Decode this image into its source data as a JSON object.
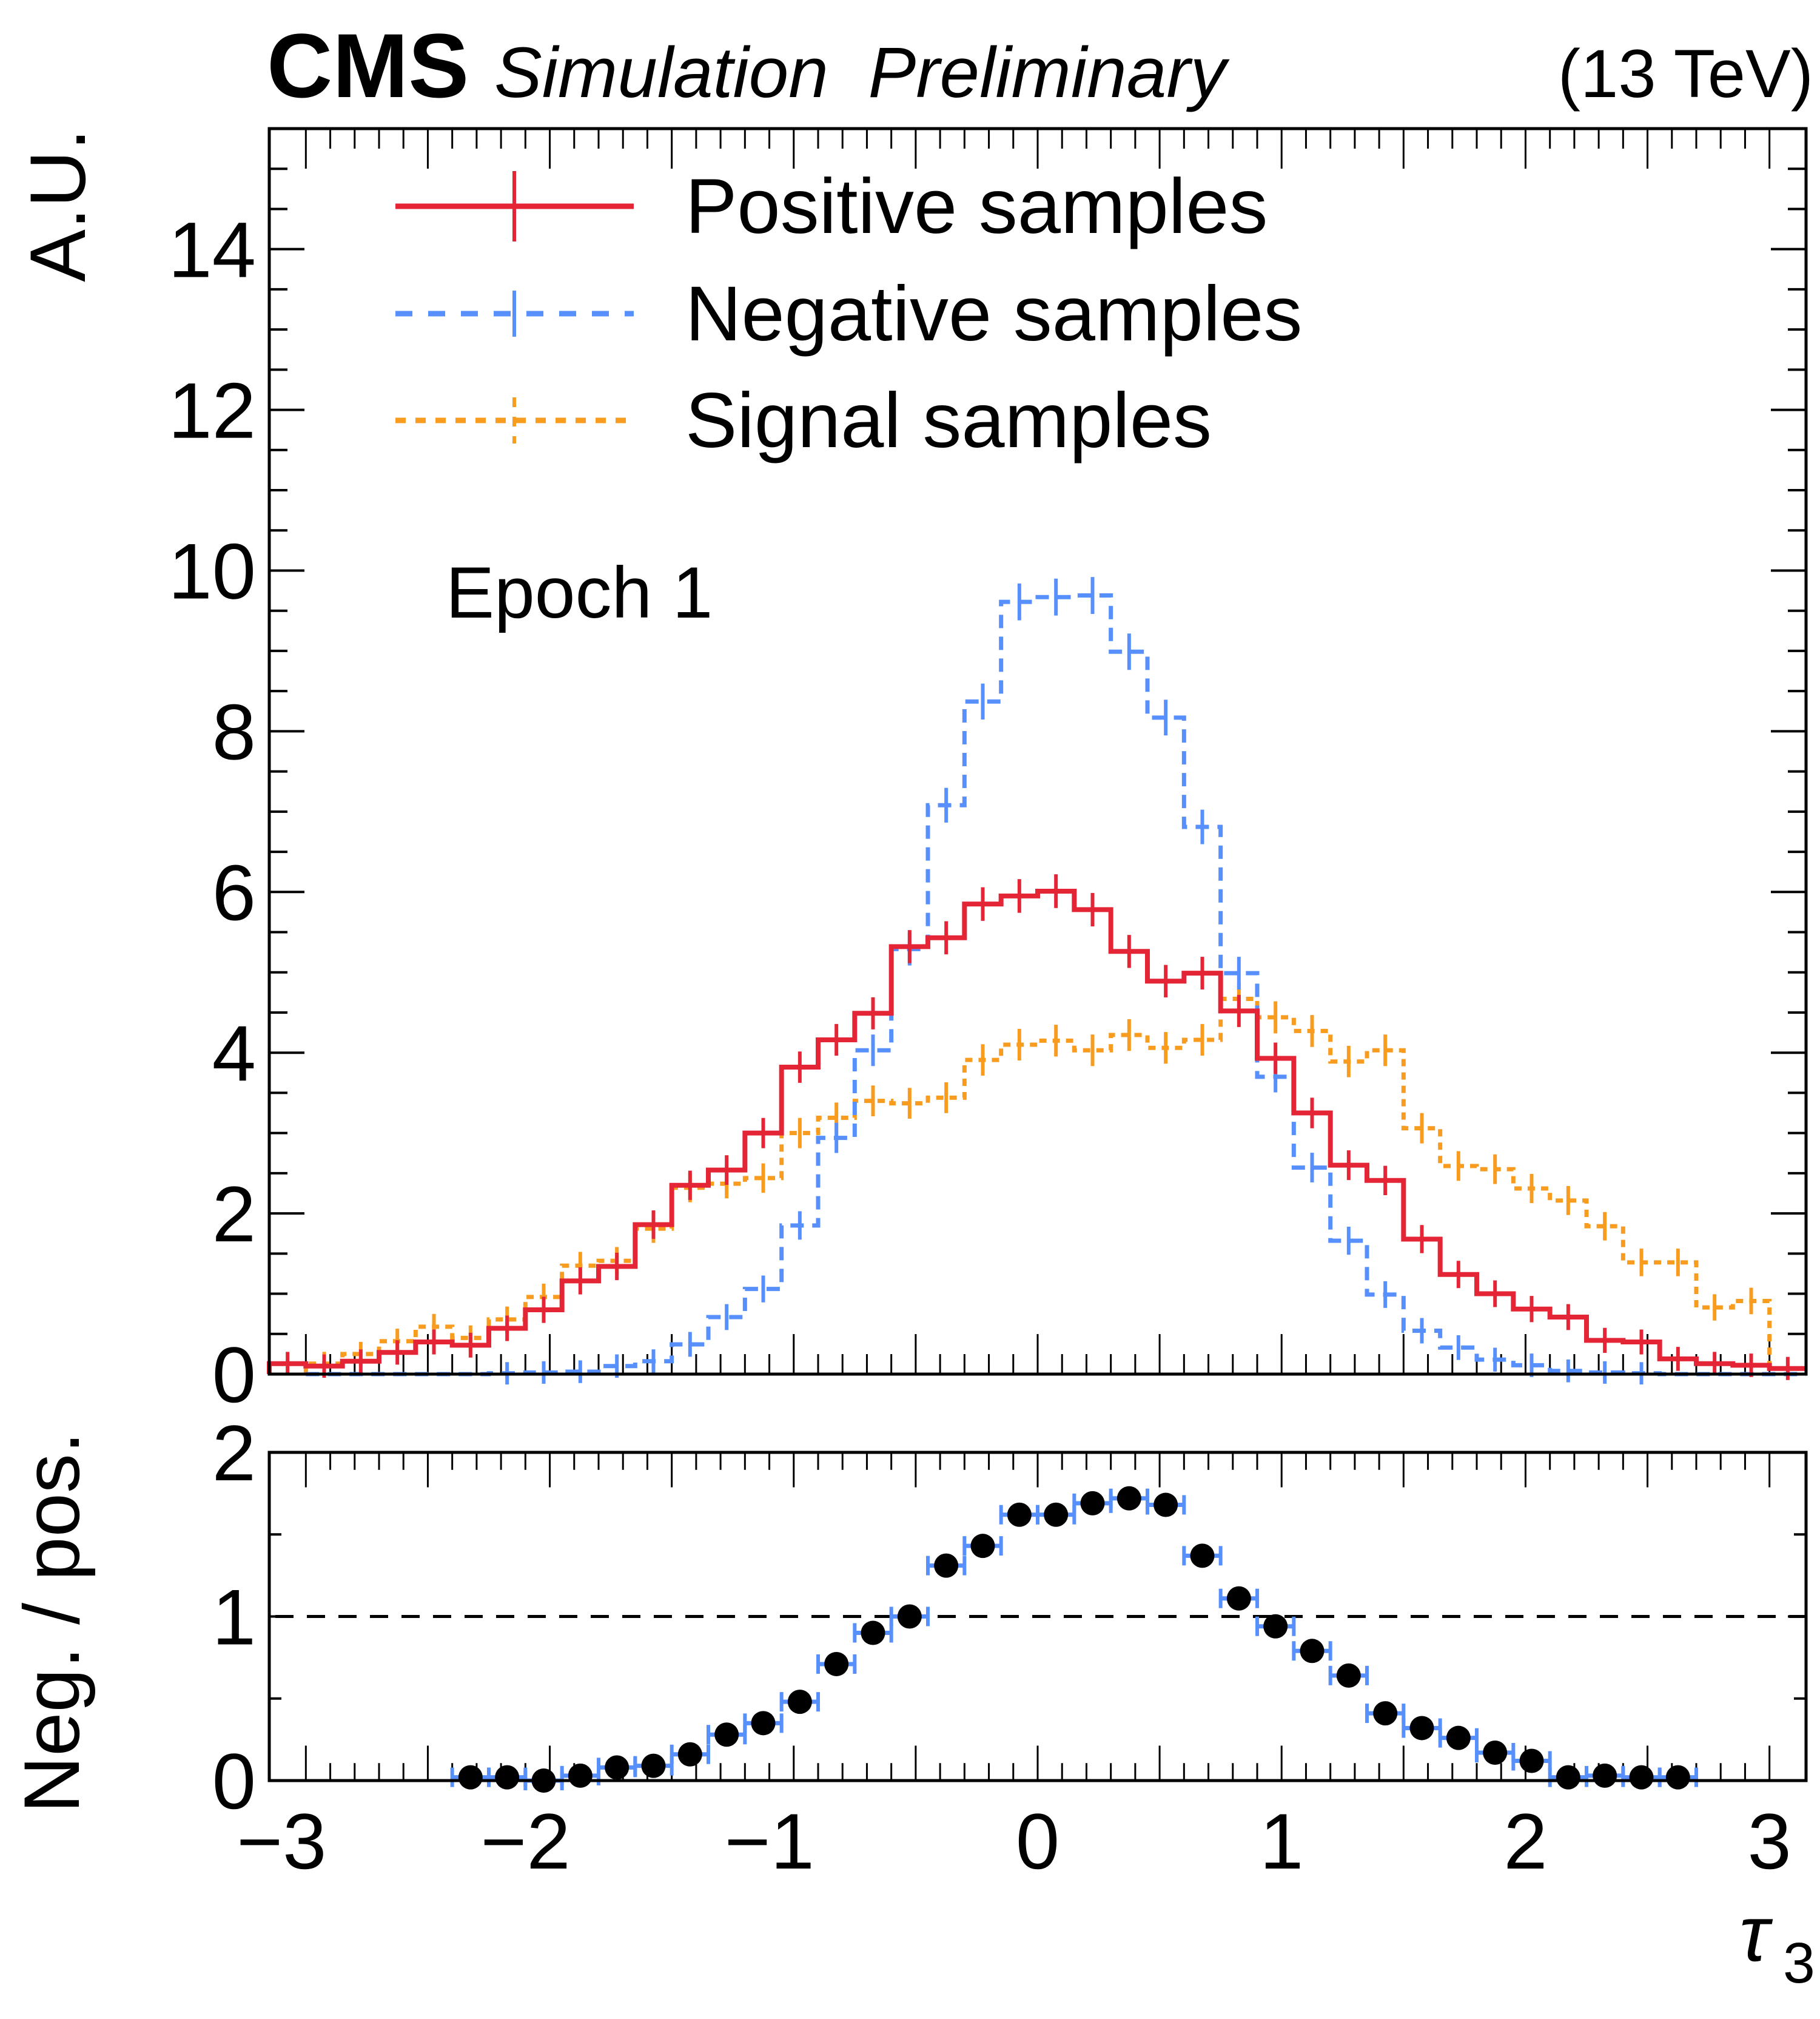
{
  "header": {
    "experiment": "CMS",
    "extra_text": "Simulation  Preliminary",
    "energy": "(13 TeV)"
  },
  "annotation": "Epoch 1",
  "colors": {
    "positive": "#e42536",
    "negative": "#5790fc",
    "signal": "#f89c20",
    "ratio_points": "#000000",
    "reference_line": "#000000"
  },
  "chart_data": [
    {
      "type": "histogram",
      "panel": "main",
      "title": "",
      "xlabel": "",
      "ylabel": "A.U.",
      "xlim": [
        -3.15,
        3.15
      ],
      "ylim": [
        0,
        15.5
      ],
      "bin_width": 0.15,
      "bin_edges_start": -3.15,
      "n_bins": 42,
      "y_ticks": [
        "0",
        "2",
        "4",
        "6",
        "8",
        "10",
        "12",
        "14"
      ],
      "y_tick_values": [
        0,
        2,
        4,
        6,
        8,
        10,
        12,
        14
      ],
      "legend": {
        "placement": "top-left",
        "entries": [
          {
            "label": "Positive samples",
            "series": "positive",
            "style": "solid"
          },
          {
            "label": "Negative samples",
            "series": "negative",
            "style": "dashed"
          },
          {
            "label": "Signal samples",
            "series": "signal",
            "style": "dotted"
          }
        ]
      },
      "series": [
        {
          "name": "Positive samples",
          "key": "positive",
          "values": [
            0.13,
            0.1,
            0.16,
            0.27,
            0.4,
            0.36,
            0.57,
            0.8,
            1.16,
            1.34,
            1.86,
            2.35,
            2.54,
            3.0,
            3.82,
            4.16,
            4.49,
            5.32,
            5.43,
            5.85,
            5.95,
            6.01,
            5.78,
            5.26,
            4.89,
            4.99,
            4.52,
            3.93,
            3.25,
            2.6,
            2.41,
            1.68,
            1.24,
            1.0,
            0.81,
            0.71,
            0.42,
            0.4,
            0.19,
            0.13,
            0.11,
            0.07
          ]
        },
        {
          "name": "Negative samples",
          "key": "negative",
          "values": [
            0.0,
            0.0,
            0.0,
            0.0,
            0.0,
            0.0,
            0.01,
            0.02,
            0.03,
            0.1,
            0.16,
            0.37,
            0.71,
            1.06,
            1.85,
            2.94,
            4.03,
            5.29,
            7.08,
            8.37,
            9.61,
            9.67,
            9.69,
            8.99,
            8.17,
            6.81,
            4.99,
            3.7,
            2.57,
            1.66,
            0.99,
            0.54,
            0.33,
            0.18,
            0.11,
            0.04,
            0.02,
            0.01,
            0.0,
            0.0,
            0.0,
            0.0
          ]
        },
        {
          "name": "Signal samples",
          "key": "signal",
          "values": [
            0.0,
            0.13,
            0.25,
            0.41,
            0.59,
            0.45,
            0.68,
            0.96,
            1.35,
            1.41,
            1.81,
            2.32,
            2.37,
            2.44,
            3.0,
            3.19,
            3.4,
            3.37,
            3.44,
            3.91,
            4.1,
            4.15,
            4.03,
            4.22,
            4.06,
            4.16,
            4.67,
            4.44,
            4.27,
            3.89,
            4.03,
            3.06,
            2.59,
            2.55,
            2.31,
            2.16,
            1.84,
            1.39,
            1.39,
            0.83,
            0.91,
            0.0
          ]
        }
      ]
    },
    {
      "type": "scatter",
      "panel": "ratio",
      "xlabel": "τ3",
      "xlabel_main": "τ",
      "xlabel_sub": "3",
      "ylabel": "Neg. / pos.",
      "xlim": [
        -3.15,
        3.15
      ],
      "ylim": [
        0,
        2
      ],
      "x_ticks": [
        "−3",
        "−2",
        "−1",
        "0",
        "1",
        "2",
        "3"
      ],
      "x_tick_values": [
        -3,
        -2,
        -1,
        0,
        1,
        2,
        3
      ],
      "y_ticks": [
        "0",
        "1",
        "2"
      ],
      "y_tick_values": [
        0,
        1,
        2
      ],
      "reference_line": 1,
      "x": [
        -2.325,
        -2.175,
        -2.025,
        -1.875,
        -1.725,
        -1.575,
        -1.425,
        -1.275,
        -1.125,
        -0.975,
        -0.825,
        -0.675,
        -0.525,
        -0.375,
        -0.225,
        -0.075,
        0.075,
        0.225,
        0.375,
        0.525,
        0.675,
        0.825,
        0.975,
        1.125,
        1.275,
        1.425,
        1.575,
        1.725,
        1.875,
        2.025,
        2.175,
        2.325,
        2.475,
        2.625
      ],
      "values": [
        0.02,
        0.02,
        0.0,
        0.03,
        0.08,
        0.09,
        0.16,
        0.28,
        0.35,
        0.48,
        0.71,
        0.9,
        1.0,
        1.31,
        1.43,
        1.62,
        1.62,
        1.69,
        1.72,
        1.68,
        1.37,
        1.11,
        0.94,
        0.79,
        0.64,
        0.41,
        0.32,
        0.26,
        0.17,
        0.12,
        0.02,
        0.03,
        0.02,
        0.02
      ],
      "x_error_half_width": 0.075
    }
  ]
}
